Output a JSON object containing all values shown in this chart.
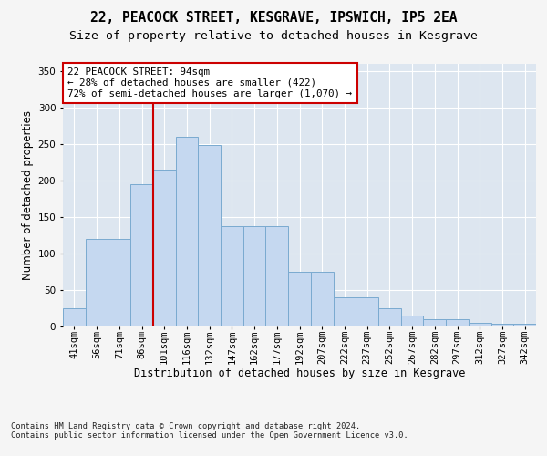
{
  "title1": "22, PEACOCK STREET, KESGRAVE, IPSWICH, IP5 2EA",
  "title2": "Size of property relative to detached houses in Kesgrave",
  "xlabel": "Distribution of detached houses by size in Kesgrave",
  "ylabel": "Number of detached properties",
  "categories": [
    "41sqm",
    "56sqm",
    "71sqm",
    "86sqm",
    "101sqm",
    "116sqm",
    "132sqm",
    "147sqm",
    "162sqm",
    "177sqm",
    "192sqm",
    "207sqm",
    "222sqm",
    "237sqm",
    "252sqm",
    "267sqm",
    "282sqm",
    "297sqm",
    "312sqm",
    "327sqm",
    "342sqm"
  ],
  "values": [
    25,
    120,
    120,
    195,
    215,
    260,
    248,
    137,
    137,
    137,
    75,
    75,
    40,
    40,
    25,
    15,
    9,
    9,
    5,
    3,
    3
  ],
  "bar_color": "#c5d8f0",
  "bar_edge_color": "#7aaad0",
  "vline_color": "#cc0000",
  "annotation_text": "22 PEACOCK STREET: 94sqm\n← 28% of detached houses are smaller (422)\n72% of semi-detached houses are larger (1,070) →",
  "ylim": [
    0,
    360
  ],
  "yticks": [
    0,
    50,
    100,
    150,
    200,
    250,
    300,
    350
  ],
  "footer": "Contains HM Land Registry data © Crown copyright and database right 2024.\nContains public sector information licensed under the Open Government Licence v3.0.",
  "fig_bg_color": "#f5f5f5",
  "plot_bg_color": "#dde6f0",
  "title1_fontsize": 10.5,
  "title2_fontsize": 9.5,
  "xlabel_fontsize": 8.5,
  "ylabel_fontsize": 8.5,
  "tick_fontsize": 7.5,
  "footer_fontsize": 6.2,
  "annotation_fontsize": 7.8
}
